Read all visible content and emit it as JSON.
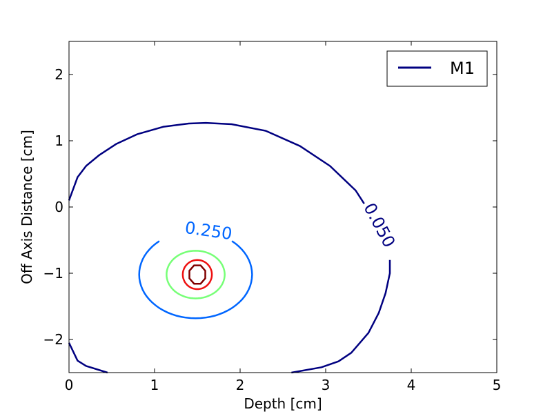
{
  "chart_data": {
    "type": "contour",
    "title": "",
    "xlabel": "Depth [cm]",
    "ylabel": "Off Axis Distance [cm]",
    "xlim": [
      0,
      5
    ],
    "ylim": [
      -2.5,
      2.5
    ],
    "xticks": [
      0,
      1,
      2,
      3,
      4,
      5
    ],
    "yticks": [
      -2,
      -1,
      0,
      1,
      2
    ],
    "xtick_labels": [
      "0",
      "1",
      "2",
      "3",
      "4",
      "5"
    ],
    "ytick_labels": [
      "−2",
      "−1",
      "0",
      "1",
      "2"
    ],
    "grid": false,
    "legend": {
      "placement": "top-right",
      "entries": [
        {
          "name": "M1",
          "color": "#000080"
        }
      ]
    },
    "series": [
      {
        "name": "M1",
        "levels": [
          {
            "level": 0.05,
            "color": "#000080",
            "label": "0.050",
            "open": true,
            "points": [
              [
                0.0,
                0.1
              ],
              [
                0.1,
                0.45
              ],
              [
                0.2,
                0.62
              ],
              [
                0.35,
                0.78
              ],
              [
                0.55,
                0.95
              ],
              [
                0.8,
                1.1
              ],
              [
                1.1,
                1.21
              ],
              [
                1.4,
                1.26
              ],
              [
                1.6,
                1.27
              ],
              [
                1.9,
                1.25
              ],
              [
                2.3,
                1.15
              ],
              [
                2.7,
                0.92
              ],
              [
                3.05,
                0.62
              ],
              [
                3.35,
                0.25
              ],
              [
                3.45,
                0.05
              ]
            ],
            "points2": [
              [
                3.75,
                -0.8
              ],
              [
                3.75,
                -1.0
              ],
              [
                3.7,
                -1.3
              ],
              [
                3.62,
                -1.6
              ],
              [
                3.5,
                -1.9
              ],
              [
                3.3,
                -2.2
              ],
              [
                3.15,
                -2.33
              ],
              [
                2.95,
                -2.42
              ],
              [
                2.6,
                -2.5
              ]
            ],
            "points3": [
              [
                0.0,
                -2.05
              ],
              [
                0.1,
                -2.32
              ],
              [
                0.2,
                -2.4
              ],
              [
                0.45,
                -2.5
              ]
            ]
          },
          {
            "level": 0.25,
            "color": "#0066ff",
            "label": "0.250",
            "open": false,
            "cx": 1.48,
            "cy": -1.02,
            "rx": 0.66,
            "ry": 0.66,
            "gap": [
              1.05,
              1.95
            ]
          },
          {
            "level": 0.5,
            "color": "#77ff77",
            "open": false,
            "cx": 1.48,
            "cy": -1.02,
            "rx": 0.34,
            "ry": 0.36
          },
          {
            "level": 0.75,
            "color": "#ee1111",
            "open": false,
            "cx": 1.5,
            "cy": -1.02,
            "rx": 0.17,
            "ry": 0.22
          },
          {
            "level": 0.95,
            "color": "#800000",
            "open": false,
            "cx": 1.5,
            "cy": -1.02,
            "rx": 0.1,
            "ry": 0.15,
            "octagon": true
          }
        ]
      }
    ],
    "contour_labels": [
      {
        "text": "0.250",
        "color": "#0066ff",
        "x": 1.63,
        "y": -0.37,
        "angle": 8
      },
      {
        "text": "0.050",
        "color": "#000080",
        "x": 3.62,
        "y": -0.28,
        "angle": 62
      }
    ]
  }
}
